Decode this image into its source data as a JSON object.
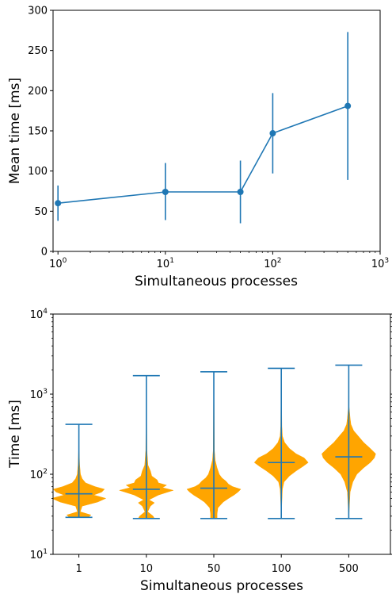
{
  "chart_data": [
    {
      "type": "line",
      "xlabel": "Simultaneous processes",
      "ylabel": "Mean time [ms]",
      "xscale": "log",
      "xlim": [
        0.9,
        1000
      ],
      "ylim": [
        0,
        300
      ],
      "x_tick_labels": [
        {
          "value": 1,
          "base": "10",
          "exp": "0"
        },
        {
          "value": 10,
          "base": "10",
          "exp": "1"
        },
        {
          "value": 100,
          "base": "10",
          "exp": "2"
        },
        {
          "value": 1000,
          "base": "10",
          "exp": "3"
        }
      ],
      "y_ticks": [
        0,
        50,
        100,
        150,
        200,
        250,
        300
      ],
      "color": "#1f77b4",
      "series": [
        {
          "x": [
            1,
            10,
            50,
            100,
            500
          ],
          "y": [
            60,
            74,
            74,
            147,
            181
          ],
          "err_low": [
            38,
            39,
            35,
            97,
            89
          ],
          "err_high": [
            82,
            110,
            113,
            197,
            273
          ]
        }
      ]
    },
    {
      "type": "violin",
      "xlabel": "Simultaneous processes",
      "ylabel": "Time [ms]",
      "yscale": "log",
      "ylim": [
        10,
        10000
      ],
      "y_tick_labels": [
        {
          "value": 10,
          "base": "10",
          "exp": "1"
        },
        {
          "value": 100,
          "base": "10",
          "exp": "2"
        },
        {
          "value": 1000,
          "base": "10",
          "exp": "3"
        },
        {
          "value": 10000,
          "base": "10",
          "exp": "4"
        }
      ],
      "categories": [
        "1",
        "10",
        "50",
        "100",
        "500"
      ],
      "body_color": "#ffa500",
      "line_color": "#1f77b4",
      "groups": [
        {
          "label": "1",
          "min": 29,
          "max": 420,
          "mean": 57,
          "density": [
            [
              29,
              0.35
            ],
            [
              31,
              0.45
            ],
            [
              34,
              0.05
            ],
            [
              40,
              0.12
            ],
            [
              45,
              0.7
            ],
            [
              50,
              1.0
            ],
            [
              55,
              0.55
            ],
            [
              60,
              0.85
            ],
            [
              65,
              0.95
            ],
            [
              70,
              0.6
            ],
            [
              78,
              0.25
            ],
            [
              88,
              0.12
            ],
            [
              100,
              0.06
            ],
            [
              130,
              0.03
            ],
            [
              200,
              0.01
            ],
            [
              420,
              0.0
            ]
          ]
        },
        {
          "label": "10",
          "min": 28,
          "max": 1700,
          "mean": 65,
          "density": [
            [
              28,
              0.3
            ],
            [
              30,
              0.25
            ],
            [
              34,
              0.05
            ],
            [
              40,
              0.15
            ],
            [
              44,
              0.3
            ],
            [
              48,
              0.1
            ],
            [
              55,
              0.45
            ],
            [
              60,
              0.8
            ],
            [
              63,
              1.0
            ],
            [
              68,
              0.6
            ],
            [
              73,
              0.75
            ],
            [
              78,
              0.45
            ],
            [
              85,
              0.4
            ],
            [
              95,
              0.2
            ],
            [
              110,
              0.15
            ],
            [
              130,
              0.06
            ],
            [
              200,
              0.02
            ],
            [
              1700,
              0.0
            ]
          ]
        },
        {
          "label": "50",
          "min": 28,
          "max": 1900,
          "mean": 67,
          "density": [
            [
              28,
              0.12
            ],
            [
              32,
              0.12
            ],
            [
              38,
              0.15
            ],
            [
              45,
              0.35
            ],
            [
              50,
              0.55
            ],
            [
              55,
              0.75
            ],
            [
              60,
              0.9
            ],
            [
              65,
              1.0
            ],
            [
              70,
              0.7
            ],
            [
              75,
              0.55
            ],
            [
              82,
              0.45
            ],
            [
              90,
              0.3
            ],
            [
              100,
              0.2
            ],
            [
              120,
              0.12
            ],
            [
              150,
              0.05
            ],
            [
              200,
              0.02
            ],
            [
              1900,
              0.0
            ]
          ]
        },
        {
          "label": "100",
          "min": 28,
          "max": 2100,
          "mean": 140,
          "density": [
            [
              28,
              0.0
            ],
            [
              45,
              0.02
            ],
            [
              65,
              0.04
            ],
            [
              80,
              0.1
            ],
            [
              95,
              0.3
            ],
            [
              110,
              0.55
            ],
            [
              125,
              0.8
            ],
            [
              140,
              1.0
            ],
            [
              160,
              0.85
            ],
            [
              180,
              0.55
            ],
            [
              210,
              0.3
            ],
            [
              250,
              0.12
            ],
            [
              300,
              0.04
            ],
            [
              400,
              0.02
            ],
            [
              2100,
              0.0
            ]
          ]
        },
        {
          "label": "500",
          "min": 28,
          "max": 2300,
          "mean": 165,
          "density": [
            [
              28,
              0.0
            ],
            [
              60,
              0.05
            ],
            [
              80,
              0.15
            ],
            [
              100,
              0.3
            ],
            [
              120,
              0.55
            ],
            [
              140,
              0.8
            ],
            [
              160,
              0.95
            ],
            [
              180,
              1.0
            ],
            [
              210,
              0.8
            ],
            [
              250,
              0.55
            ],
            [
              300,
              0.35
            ],
            [
              350,
              0.18
            ],
            [
              420,
              0.08
            ],
            [
              500,
              0.05
            ],
            [
              600,
              0.03
            ],
            [
              700,
              0.01
            ],
            [
              2300,
              0.0
            ]
          ]
        }
      ]
    }
  ]
}
